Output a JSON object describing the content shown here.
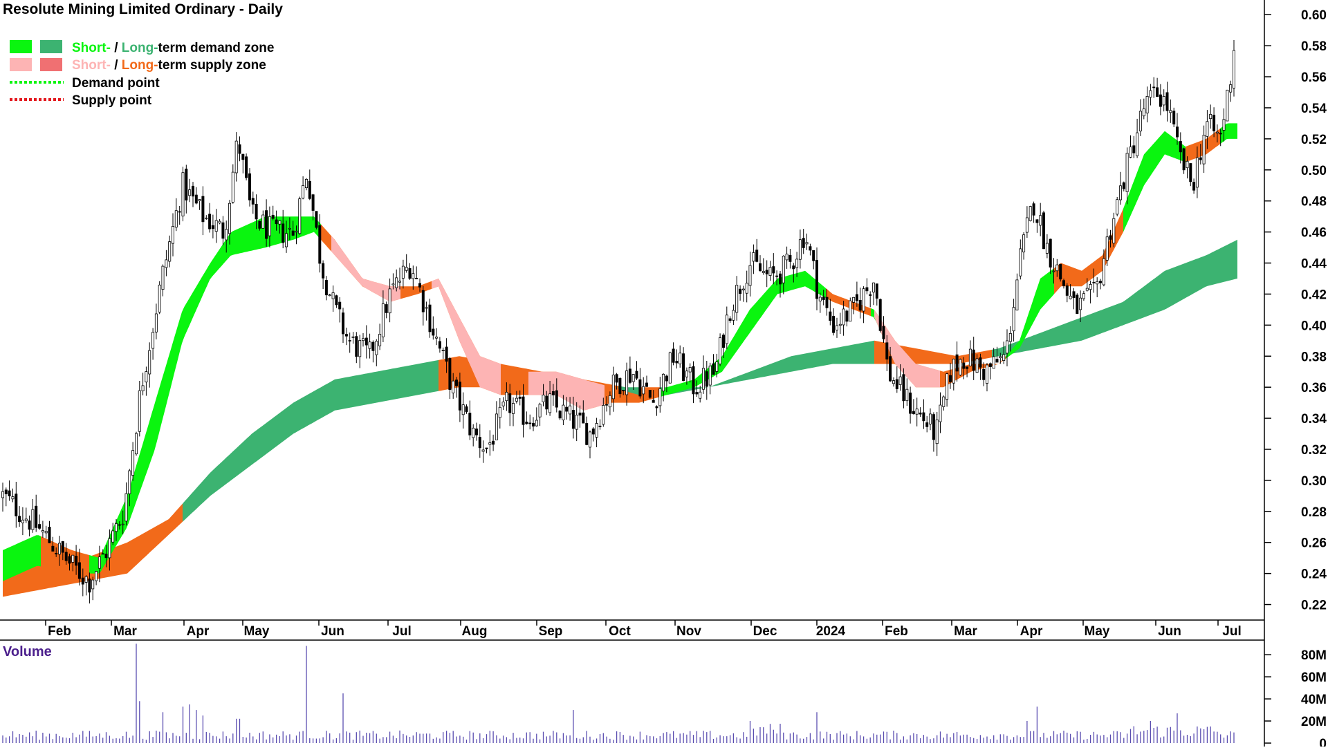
{
  "colors": {
    "short_demand": "#0af50f",
    "long_demand": "#3cb371",
    "short_supply": "#fdb4b4",
    "long_supply": "#f26a1a",
    "candle": "#000000",
    "volume_bar": "#5a4db0",
    "volume_title": "#4b1f8c",
    "axis": "#000000",
    "demand_point": "#0af50f",
    "supply_point": "#e3161c"
  },
  "legend": {
    "zone_demand": {
      "short": "Short-",
      "sep": " / ",
      "long": "Long-",
      "rest": "term demand zone"
    },
    "zone_supply": {
      "short": "Short-",
      "sep": " / ",
      "long": "Long-",
      "rest": "term supply zone"
    },
    "demand_point": "Demand point",
    "supply_point": "Supply point"
  },
  "chart_data": [
    {
      "type": "candlestick",
      "title": "Resolute Mining Limited Ordinary - Daily",
      "x_labels": [
        {
          "label": "Feb",
          "t": 0.8
        },
        {
          "label": "Mar",
          "t": 1.75
        },
        {
          "label": "Apr",
          "t": 2.8
        },
        {
          "label": "May",
          "t": 3.65
        },
        {
          "label": "Jun",
          "t": 4.75
        },
        {
          "label": "Jul",
          "t": 5.75
        },
        {
          "label": "Aug",
          "t": 6.8
        },
        {
          "label": "Sep",
          "t": 7.9
        },
        {
          "label": "Oct",
          "t": 8.9
        },
        {
          "label": "Nov",
          "t": 9.9
        },
        {
          "label": "Dec",
          "t": 11.0
        },
        {
          "label": "2024",
          "t": 11.95
        },
        {
          "label": "Feb",
          "t": 12.9
        },
        {
          "label": "Mar",
          "t": 13.9
        },
        {
          "label": "Apr",
          "t": 14.85
        },
        {
          "label": "May",
          "t": 15.8
        },
        {
          "label": "Jun",
          "t": 16.85
        },
        {
          "label": "Jul",
          "t": 17.75
        }
      ],
      "x_range": [
        0,
        18.2
      ],
      "y_ticks": [
        0.22,
        0.24,
        0.26,
        0.28,
        0.3,
        0.32,
        0.34,
        0.36,
        0.38,
        0.4,
        0.42,
        0.44,
        0.46,
        0.48,
        0.5,
        0.52,
        0.54,
        0.56,
        0.58,
        0.6
      ],
      "ylim": [
        0.21,
        0.605
      ],
      "price_anchors": [
        [
          0,
          0.29
        ],
        [
          0.5,
          0.27
        ],
        [
          1.0,
          0.245
        ],
        [
          1.25,
          0.235
        ],
        [
          1.5,
          0.255
        ],
        [
          1.75,
          0.28
        ],
        [
          2.0,
          0.36
        ],
        [
          2.3,
          0.43
        ],
        [
          2.6,
          0.49
        ],
        [
          2.9,
          0.47
        ],
        [
          3.2,
          0.46
        ],
        [
          3.4,
          0.52
        ],
        [
          3.6,
          0.47
        ],
        [
          3.9,
          0.46
        ],
        [
          4.2,
          0.46
        ],
        [
          4.4,
          0.5
        ],
        [
          4.6,
          0.44
        ],
        [
          4.8,
          0.41
        ],
        [
          5.0,
          0.39
        ],
        [
          5.3,
          0.38
        ],
        [
          5.6,
          0.42
        ],
        [
          5.9,
          0.44
        ],
        [
          6.2,
          0.4
        ],
        [
          6.5,
          0.36
        ],
        [
          6.8,
          0.33
        ],
        [
          7.0,
          0.32
        ],
        [
          7.3,
          0.35
        ],
        [
          7.6,
          0.34
        ],
        [
          7.9,
          0.35
        ],
        [
          8.2,
          0.34
        ],
        [
          8.5,
          0.33
        ],
        [
          8.8,
          0.36
        ],
        [
          9.1,
          0.37
        ],
        [
          9.4,
          0.35
        ],
        [
          9.7,
          0.38
        ],
        [
          10.0,
          0.36
        ],
        [
          10.3,
          0.37
        ],
        [
          10.5,
          0.41
        ],
        [
          10.8,
          0.44
        ],
        [
          11.1,
          0.43
        ],
        [
          11.4,
          0.44
        ],
        [
          11.6,
          0.46
        ],
        [
          11.8,
          0.42
        ],
        [
          12.0,
          0.4
        ],
        [
          12.3,
          0.41
        ],
        [
          12.6,
          0.43
        ],
        [
          12.8,
          0.37
        ],
        [
          13.1,
          0.35
        ],
        [
          13.3,
          0.34
        ],
        [
          13.5,
          0.33
        ],
        [
          13.7,
          0.37
        ],
        [
          13.9,
          0.38
        ],
        [
          14.2,
          0.37
        ],
        [
          14.5,
          0.38
        ],
        [
          14.7,
          0.44
        ],
        [
          14.9,
          0.48
        ],
        [
          15.1,
          0.45
        ],
        [
          15.3,
          0.43
        ],
        [
          15.5,
          0.41
        ],
        [
          15.8,
          0.42
        ],
        [
          16.0,
          0.46
        ],
        [
          16.3,
          0.51
        ],
        [
          16.5,
          0.54
        ],
        [
          16.7,
          0.55
        ],
        [
          16.85,
          0.54
        ],
        [
          17.0,
          0.51
        ],
        [
          17.2,
          0.49
        ],
        [
          17.4,
          0.53
        ],
        [
          17.6,
          0.52
        ],
        [
          17.75,
          0.56
        ],
        [
          17.8,
          0.58
        ]
      ],
      "candle_count": 370,
      "short_term_zone": {
        "upper": [
          [
            0,
            0.255
          ],
          [
            0.5,
            0.265
          ],
          [
            1.0,
            0.255
          ],
          [
            1.4,
            0.25
          ],
          [
            1.8,
            0.29
          ],
          [
            2.2,
            0.35
          ],
          [
            2.6,
            0.41
          ],
          [
            3.0,
            0.44
          ],
          [
            3.3,
            0.46
          ],
          [
            3.8,
            0.47
          ],
          [
            4.2,
            0.47
          ],
          [
            4.5,
            0.47
          ],
          [
            4.8,
            0.455
          ],
          [
            5.2,
            0.43
          ],
          [
            5.6,
            0.425
          ],
          [
            6.0,
            0.425
          ],
          [
            6.3,
            0.43
          ],
          [
            6.6,
            0.405
          ],
          [
            6.9,
            0.38
          ],
          [
            7.2,
            0.375
          ],
          [
            7.6,
            0.37
          ],
          [
            8.0,
            0.37
          ],
          [
            8.4,
            0.365
          ],
          [
            8.8,
            0.36
          ],
          [
            9.2,
            0.355
          ],
          [
            9.6,
            0.36
          ],
          [
            10.0,
            0.365
          ],
          [
            10.4,
            0.38
          ],
          [
            10.8,
            0.41
          ],
          [
            11.2,
            0.43
          ],
          [
            11.6,
            0.435
          ],
          [
            12.0,
            0.42
          ],
          [
            12.3,
            0.415
          ],
          [
            12.6,
            0.41
          ],
          [
            12.9,
            0.39
          ],
          [
            13.2,
            0.375
          ],
          [
            13.6,
            0.37
          ],
          [
            14.0,
            0.375
          ],
          [
            14.4,
            0.375
          ],
          [
            14.7,
            0.39
          ],
          [
            15.0,
            0.43
          ],
          [
            15.3,
            0.44
          ],
          [
            15.6,
            0.435
          ],
          [
            15.9,
            0.445
          ],
          [
            16.2,
            0.475
          ],
          [
            16.5,
            0.51
          ],
          [
            16.8,
            0.525
          ],
          [
            17.1,
            0.515
          ],
          [
            17.4,
            0.52
          ],
          [
            17.7,
            0.53
          ]
        ],
        "lower": [
          [
            0,
            0.235
          ],
          [
            0.5,
            0.245
          ],
          [
            1.0,
            0.24
          ],
          [
            1.4,
            0.24
          ],
          [
            1.8,
            0.27
          ],
          [
            2.2,
            0.32
          ],
          [
            2.6,
            0.39
          ],
          [
            3.0,
            0.43
          ],
          [
            3.3,
            0.445
          ],
          [
            3.8,
            0.45
          ],
          [
            4.2,
            0.455
          ],
          [
            4.5,
            0.46
          ],
          [
            4.8,
            0.445
          ],
          [
            5.2,
            0.425
          ],
          [
            5.6,
            0.415
          ],
          [
            6.0,
            0.42
          ],
          [
            6.3,
            0.425
          ],
          [
            6.6,
            0.39
          ],
          [
            6.9,
            0.36
          ],
          [
            7.2,
            0.355
          ],
          [
            7.6,
            0.355
          ],
          [
            8.0,
            0.355
          ],
          [
            8.4,
            0.345
          ],
          [
            8.8,
            0.35
          ],
          [
            9.2,
            0.35
          ],
          [
            9.6,
            0.355
          ],
          [
            10.0,
            0.36
          ],
          [
            10.4,
            0.37
          ],
          [
            10.8,
            0.395
          ],
          [
            11.2,
            0.42
          ],
          [
            11.6,
            0.425
          ],
          [
            12.0,
            0.415
          ],
          [
            12.3,
            0.41
          ],
          [
            12.6,
            0.405
          ],
          [
            12.9,
            0.375
          ],
          [
            13.2,
            0.36
          ],
          [
            13.6,
            0.36
          ],
          [
            14.0,
            0.37
          ],
          [
            14.4,
            0.375
          ],
          [
            14.7,
            0.385
          ],
          [
            15.0,
            0.41
          ],
          [
            15.3,
            0.425
          ],
          [
            15.6,
            0.425
          ],
          [
            15.9,
            0.435
          ],
          [
            16.2,
            0.46
          ],
          [
            16.5,
            0.49
          ],
          [
            16.8,
            0.51
          ],
          [
            17.1,
            0.505
          ],
          [
            17.4,
            0.51
          ],
          [
            17.7,
            0.52
          ]
        ]
      },
      "long_term_zone": {
        "upper": [
          [
            0,
            0.245
          ],
          [
            0.6,
            0.255
          ],
          [
            1.2,
            0.25
          ],
          [
            1.8,
            0.26
          ],
          [
            2.4,
            0.275
          ],
          [
            3.0,
            0.305
          ],
          [
            3.6,
            0.33
          ],
          [
            4.2,
            0.35
          ],
          [
            4.8,
            0.365
          ],
          [
            5.4,
            0.37
          ],
          [
            6.0,
            0.375
          ],
          [
            6.6,
            0.38
          ],
          [
            7.2,
            0.375
          ],
          [
            7.8,
            0.37
          ],
          [
            8.4,
            0.365
          ],
          [
            9.0,
            0.36
          ],
          [
            9.6,
            0.36
          ],
          [
            10.2,
            0.36
          ],
          [
            10.8,
            0.37
          ],
          [
            11.4,
            0.38
          ],
          [
            12.0,
            0.385
          ],
          [
            12.6,
            0.39
          ],
          [
            13.2,
            0.385
          ],
          [
            13.8,
            0.38
          ],
          [
            14.4,
            0.385
          ],
          [
            15.0,
            0.395
          ],
          [
            15.6,
            0.405
          ],
          [
            16.2,
            0.415
          ],
          [
            16.8,
            0.435
          ],
          [
            17.4,
            0.445
          ],
          [
            17.85,
            0.455
          ]
        ],
        "lower": [
          [
            0,
            0.225
          ],
          [
            0.6,
            0.23
          ],
          [
            1.2,
            0.235
          ],
          [
            1.8,
            0.24
          ],
          [
            2.4,
            0.265
          ],
          [
            3.0,
            0.29
          ],
          [
            3.6,
            0.31
          ],
          [
            4.2,
            0.33
          ],
          [
            4.8,
            0.345
          ],
          [
            5.4,
            0.35
          ],
          [
            6.0,
            0.355
          ],
          [
            6.6,
            0.36
          ],
          [
            7.2,
            0.36
          ],
          [
            7.8,
            0.355
          ],
          [
            8.4,
            0.355
          ],
          [
            9.0,
            0.355
          ],
          [
            9.6,
            0.355
          ],
          [
            10.2,
            0.36
          ],
          [
            10.8,
            0.365
          ],
          [
            11.4,
            0.37
          ],
          [
            12.0,
            0.375
          ],
          [
            12.6,
            0.375
          ],
          [
            13.2,
            0.375
          ],
          [
            13.8,
            0.375
          ],
          [
            14.4,
            0.38
          ],
          [
            15.0,
            0.385
          ],
          [
            15.6,
            0.39
          ],
          [
            16.2,
            0.4
          ],
          [
            16.8,
            0.41
          ],
          [
            17.4,
            0.425
          ],
          [
            17.85,
            0.43
          ]
        ]
      },
      "short_term_state": [
        [
          0,
          0.55,
          "demand"
        ],
        [
          0.55,
          1.25,
          "supply"
        ],
        [
          1.25,
          4.6,
          "demand"
        ],
        [
          4.6,
          6.0,
          "supply"
        ],
        [
          6.0,
          6.4,
          "supply"
        ],
        [
          6.4,
          9.5,
          "supply"
        ],
        [
          9.5,
          11.9,
          "demand"
        ],
        [
          11.9,
          12.55,
          "supply"
        ],
        [
          12.55,
          12.7,
          "demand"
        ],
        [
          12.7,
          14.5,
          "supply"
        ],
        [
          14.5,
          15.2,
          "demand"
        ],
        [
          15.2,
          16.2,
          "supply"
        ],
        [
          16.2,
          17.1,
          "demand"
        ],
        [
          17.1,
          17.6,
          "supply"
        ],
        [
          17.6,
          17.85,
          "demand"
        ]
      ],
      "long_term_state": [
        [
          0,
          2.6,
          "supply"
        ],
        [
          2.6,
          6.3,
          "demand"
        ],
        [
          6.3,
          8.9,
          "supply"
        ],
        [
          8.9,
          9.2,
          "demand"
        ],
        [
          9.2,
          9.5,
          "supply"
        ],
        [
          9.5,
          12.6,
          "demand"
        ],
        [
          12.6,
          14.3,
          "supply"
        ],
        [
          14.3,
          17.85,
          "demand"
        ]
      ]
    },
    {
      "type": "bar",
      "title": "Volume",
      "y_ticks": [
        {
          "value": 0,
          "label": "0"
        },
        {
          "value": 20,
          "label": "20M"
        },
        {
          "value": 40,
          "label": "40M"
        },
        {
          "value": 60,
          "label": "60M"
        },
        {
          "value": 80,
          "label": "80M"
        }
      ],
      "ylim": [
        0,
        92
      ],
      "base_volume": 6,
      "spikes": [
        {
          "t": 1.95,
          "value": 90
        },
        {
          "t": 2.0,
          "value": 38
        },
        {
          "t": 4.4,
          "value": 88
        },
        {
          "t": 4.9,
          "value": 45
        },
        {
          "t": 2.7,
          "value": 35
        },
        {
          "t": 2.6,
          "value": 33
        },
        {
          "t": 2.3,
          "value": 28
        },
        {
          "t": 2.8,
          "value": 30
        },
        {
          "t": 2.9,
          "value": 25
        },
        {
          "t": 8.25,
          "value": 30
        },
        {
          "t": 11.75,
          "value": 28
        },
        {
          "t": 14.95,
          "value": 33
        },
        {
          "t": 17.0,
          "value": 27
        },
        {
          "t": 3.4,
          "value": 22
        },
        {
          "t": 10.8,
          "value": 20
        },
        {
          "t": 14.8,
          "value": 20
        },
        {
          "t": 16.6,
          "value": 20
        }
      ]
    }
  ]
}
